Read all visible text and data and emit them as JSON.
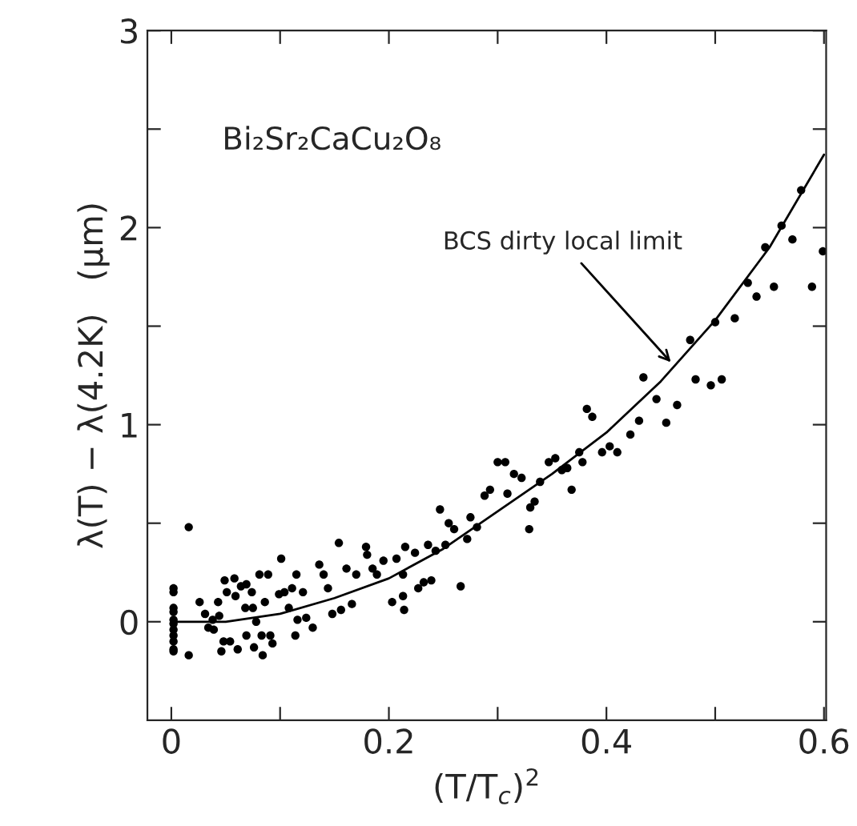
{
  "chart_data": {
    "type": "scatter",
    "xlabel": "(T/T$_{c}$)$^{2}$",
    "ylabel": "λ(T) − λ(4.2K)   (μm)",
    "annotations": [
      "Bi₂Sr₂CaCu₂O₈",
      {
        "text": "BCS dirty local limit",
        "x": 0.462,
        "y": 1.3
      }
    ],
    "xlim": [
      -0.022,
      0.602
    ],
    "ylim": [
      -0.5,
      3.0
    ],
    "xticks": [
      0,
      {
        "value": 0.1,
        "label": null
      },
      0.2,
      {
        "value": 0.3,
        "label": null
      },
      0.4,
      {
        "value": 0.5,
        "label": null
      },
      0.6
    ],
    "yticks": [
      0,
      {
        "value": 0.5,
        "label": null
      },
      1,
      {
        "value": 1.5,
        "label": null
      },
      2,
      {
        "value": 2.5,
        "label": null
      },
      3
    ],
    "grid": false,
    "legend": false,
    "marker": "circle",
    "series": [
      {
        "color": "#000000",
        "x": [
          0.016,
          0.002,
          0.002,
          0.002,
          0.002,
          0.002,
          0.002,
          0.002,
          0.002,
          0.002,
          0.002,
          0.002,
          0.016,
          0.026,
          0.031,
          0.034,
          0.038,
          0.039,
          0.043,
          0.044,
          0.046,
          0.048,
          0.049,
          0.051,
          0.054,
          0.058,
          0.059,
          0.061,
          0.064,
          0.068,
          0.069,
          0.069,
          0.074,
          0.075,
          0.076,
          0.078,
          0.081,
          0.083,
          0.084,
          0.086,
          0.089,
          0.091,
          0.093,
          0.099,
          0.101,
          0.104,
          0.108,
          0.111,
          0.114,
          0.115,
          0.116,
          0.121,
          0.124,
          0.13,
          0.136,
          0.14,
          0.144,
          0.148,
          0.154,
          0.156,
          0.161,
          0.166,
          0.17,
          0.179,
          0.18,
          0.185,
          0.189,
          0.195,
          0.203,
          0.207,
          0.213,
          0.213,
          0.214,
          0.215,
          0.224,
          0.227,
          0.232,
          0.236,
          0.239,
          0.243,
          0.247,
          0.252,
          0.255,
          0.26,
          0.266,
          0.272,
          0.275,
          0.281,
          0.288,
          0.293,
          0.3,
          0.307,
          0.309,
          0.315,
          0.322,
          0.329,
          0.33,
          0.334,
          0.339,
          0.347,
          0.353,
          0.359,
          0.364,
          0.368,
          0.375,
          0.378,
          0.382,
          0.387,
          0.396,
          0.403,
          0.41,
          0.422,
          0.43,
          0.434,
          0.446,
          0.455,
          0.465,
          0.477,
          0.482,
          0.496,
          0.5,
          0.506,
          0.518,
          0.53,
          0.538,
          0.546,
          0.554,
          0.561,
          0.571,
          0.579,
          0.589,
          0.599
        ],
        "values": [
          0.48,
          0.17,
          0.15,
          0.07,
          0.05,
          0.01,
          -0.01,
          -0.04,
          -0.07,
          -0.1,
          -0.14,
          -0.15,
          -0.17,
          0.1,
          0.04,
          -0.03,
          0.01,
          -0.04,
          0.1,
          0.03,
          -0.15,
          -0.1,
          0.21,
          0.15,
          -0.1,
          0.22,
          0.13,
          -0.14,
          0.18,
          0.07,
          -0.07,
          0.19,
          0.15,
          0.07,
          -0.13,
          0.0,
          0.24,
          -0.07,
          -0.17,
          0.1,
          0.24,
          -0.07,
          -0.11,
          0.14,
          0.32,
          0.15,
          0.07,
          0.17,
          -0.07,
          0.24,
          0.01,
          0.15,
          0.02,
          -0.03,
          0.29,
          0.24,
          0.17,
          0.04,
          0.4,
          0.06,
          0.27,
          0.09,
          0.24,
          0.38,
          0.34,
          0.27,
          0.24,
          0.31,
          0.1,
          0.32,
          0.24,
          0.13,
          0.06,
          0.38,
          0.35,
          0.17,
          0.2,
          0.39,
          0.21,
          0.36,
          0.57,
          0.39,
          0.5,
          0.47,
          0.18,
          0.42,
          0.53,
          0.48,
          0.64,
          0.67,
          0.81,
          0.81,
          0.65,
          0.75,
          0.73,
          0.47,
          0.58,
          0.61,
          0.71,
          0.81,
          0.83,
          0.77,
          0.78,
          0.67,
          0.86,
          0.81,
          1.08,
          1.04,
          0.86,
          0.89,
          0.86,
          0.95,
          1.02,
          1.24,
          1.13,
          1.01,
          1.1,
          1.43,
          1.23,
          1.2,
          1.52,
          1.23,
          1.54,
          1.72,
          1.65,
          1.9,
          1.7,
          2.01,
          1.94,
          2.19,
          1.7,
          1.88
        ]
      },
      {
        "type": "line",
        "color": "#000000",
        "marker": "none",
        "x": [
          0,
          0.05,
          0.1,
          0.15,
          0.2,
          0.25,
          0.3,
          0.35,
          0.4,
          0.45,
          0.5,
          0.55,
          0.6
        ],
        "values": [
          0,
          0.0,
          0.04,
          0.12,
          0.22,
          0.37,
          0.56,
          0.75,
          0.96,
          1.22,
          1.53,
          1.9,
          2.37
        ]
      }
    ]
  }
}
